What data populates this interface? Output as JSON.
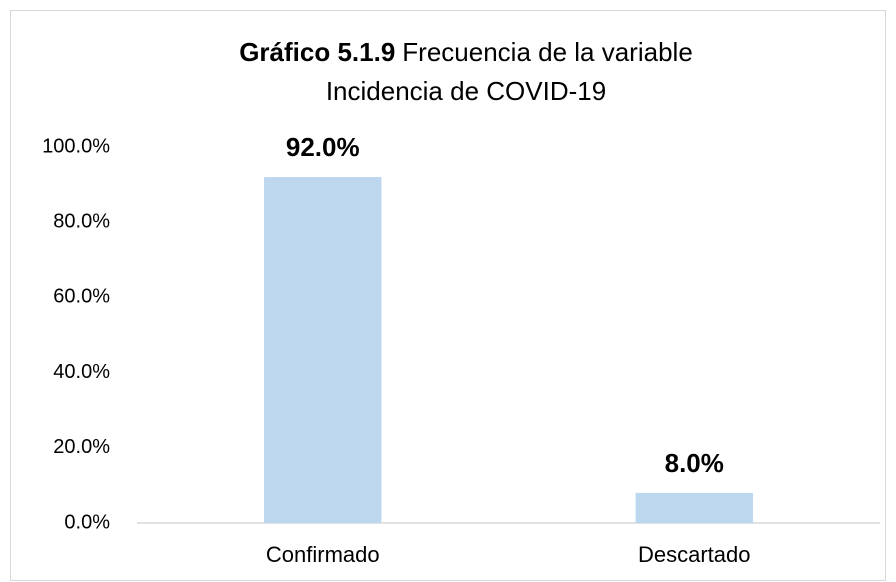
{
  "chart_data": {
    "type": "bar",
    "title_prefix": "Gráfico 5.1.9",
    "title_lines": [
      "Frecuencia de la variable",
      "Incidencia de COVID-19"
    ],
    "categories": [
      "Confirmado",
      "Descartado"
    ],
    "values": [
      92,
      8
    ],
    "value_labels": [
      "92.0%",
      "8.0%"
    ],
    "color": "#bdd7ee",
    "ylim": [
      0,
      100
    ],
    "yticks": [
      {
        "value": 0,
        "label": "0.0%"
      },
      {
        "value": 20,
        "label": "20.0%"
      },
      {
        "value": 40,
        "label": "40.0%"
      },
      {
        "value": 60,
        "label": "60.0%"
      },
      {
        "value": 80,
        "label": "80.0%"
      },
      {
        "value": 100,
        "label": "100.0%"
      }
    ],
    "grid": false
  }
}
